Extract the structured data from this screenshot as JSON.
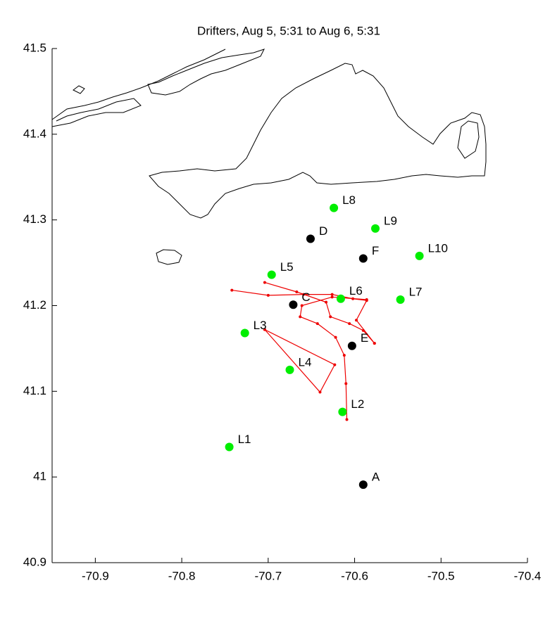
{
  "chart_data": {
    "type": "scatter",
    "title": "Drifters, Aug 5, 5:31 to Aug 6, 5:31",
    "xlim": [
      -70.95,
      -70.4
    ],
    "ylim": [
      40.9,
      41.5
    ],
    "xticks": [
      -70.9,
      -70.8,
      -70.7,
      -70.6,
      -70.5,
      -70.4
    ],
    "yticks": [
      40.9,
      41,
      41.1,
      41.2,
      41.3,
      41.4,
      41.5
    ],
    "series": [
      {
        "color": "#00ee00",
        "x": [
          -70.745,
          -70.614,
          -70.727,
          -70.675,
          -70.696,
          -70.616,
          -70.547,
          -70.624,
          -70.576,
          -70.525
        ],
        "values": [
          41.035,
          41.076,
          41.168,
          41.125,
          41.236,
          41.208,
          41.207,
          41.314,
          41.29,
          41.258
        ],
        "point_labels": [
          "L1",
          "L2",
          "L3",
          "L4",
          "L5",
          "L6",
          "L7",
          "L8",
          "L9",
          "L10"
        ]
      },
      {
        "color": "#000000",
        "x": [
          -70.59,
          -70.671,
          -70.651,
          -70.603,
          -70.59
        ],
        "values": [
          40.991,
          41.201,
          41.278,
          41.153,
          41.255
        ],
        "point_labels": [
          "A",
          "C",
          "D",
          "E",
          "F"
        ]
      }
    ],
    "tracks": [
      {
        "color": "#ee0000",
        "x": [
          -70.609,
          -70.61,
          -70.612,
          -70.622,
          -70.643,
          -70.663,
          -70.661,
          -70.626,
          -70.586
        ],
        "values": [
          41.067,
          41.109,
          41.142,
          41.163,
          41.179,
          41.187,
          41.2,
          41.21,
          41.207
        ]
      },
      {
        "color": "#ee0000",
        "x": [
          -70.742,
          -70.7,
          -70.659,
          -70.626,
          -70.602,
          -70.586,
          -70.598,
          -70.577
        ],
        "values": [
          41.218,
          41.212,
          41.213,
          41.213,
          41.208,
          41.206,
          41.183,
          41.156
        ]
      },
      {
        "color": "#ee0000",
        "x": [
          -70.704,
          -70.667,
          -70.633,
          -70.628,
          -70.606,
          -70.59,
          -70.577
        ],
        "values": [
          41.227,
          41.216,
          41.204,
          41.187,
          41.179,
          41.171,
          41.156
        ]
      },
      {
        "color": "#ee0000",
        "x": [
          -70.704,
          -70.623,
          -70.64,
          -70.704
        ],
        "values": [
          41.172,
          41.131,
          41.099,
          41.172
        ]
      }
    ]
  }
}
